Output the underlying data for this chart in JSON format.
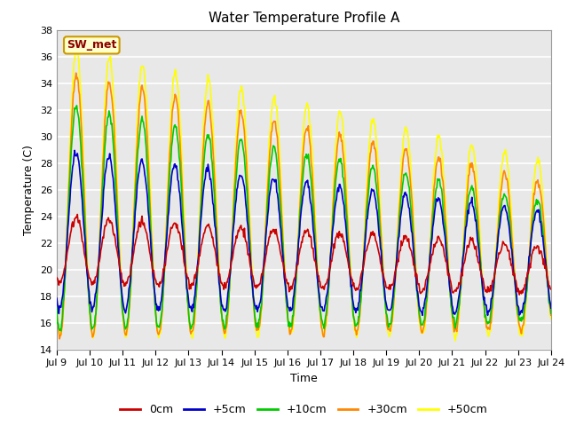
{
  "title": "Water Temperature Profile A",
  "xlabel": "Time",
  "ylabel": "Temperature (C)",
  "ylim": [
    14,
    38
  ],
  "yticks": [
    14,
    16,
    18,
    20,
    22,
    24,
    26,
    28,
    30,
    32,
    34,
    36,
    38
  ],
  "annotation": "SW_met",
  "bg_color": "#e8e8e8",
  "lines": {
    "0cm": {
      "color": "#cc0000",
      "lw": 1.2
    },
    "+5cm": {
      "color": "#0000cc",
      "lw": 1.2
    },
    "+10cm": {
      "color": "#00cc00",
      "lw": 1.2
    },
    "+30cm": {
      "color": "#ff8800",
      "lw": 1.2
    },
    "+50cm": {
      "color": "#ffff00",
      "lw": 1.2
    }
  },
  "xtick_labels": [
    "Jul 9",
    "Jul 10",
    "Jul 11",
    "Jul 12",
    "Jul 13",
    "Jul 14",
    "Jul 15",
    "Jul 16",
    "Jul 17",
    "Jul 18",
    "Jul 19",
    "Jul 20",
    "Jul 21",
    "Jul 22",
    "Jul 23",
    "Jul 24"
  ],
  "xtick_positions": [
    0,
    1,
    2,
    3,
    4,
    5,
    6,
    7,
    8,
    9,
    10,
    11,
    12,
    13,
    14,
    15
  ]
}
